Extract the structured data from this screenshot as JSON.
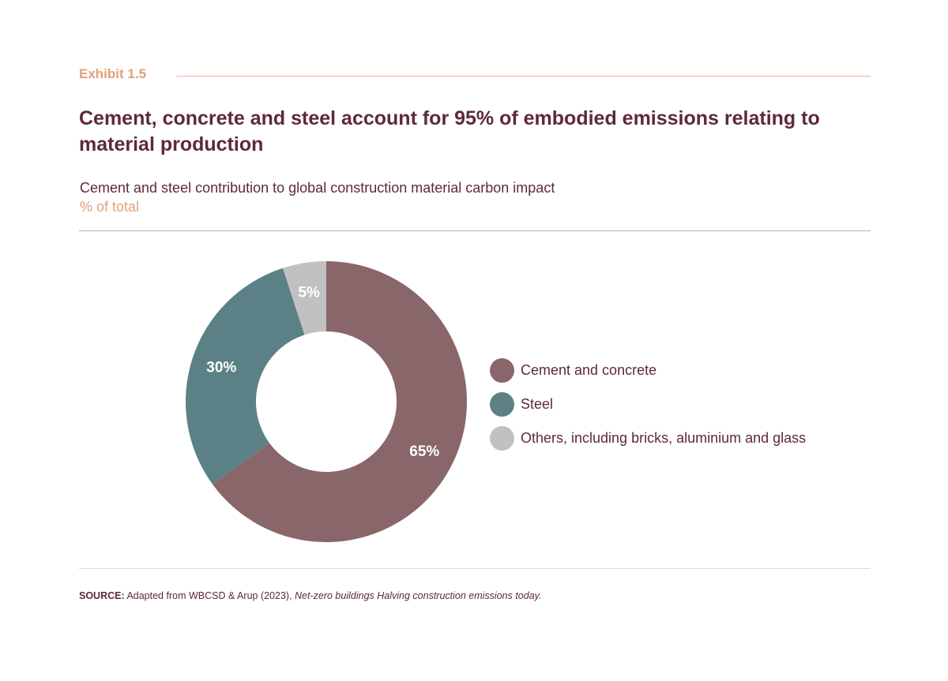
{
  "exhibit": {
    "label": "Exhibit 1.5"
  },
  "headline": "Cement, concrete and steel account for 95% of embodied emissions relating to material production",
  "subtitle": "Cement and steel contribution to global construction material carbon impact",
  "unit_label": "% of total",
  "colors": {
    "cement": "#896669",
    "steel": "#5b8186",
    "others": "#c2c0c0",
    "title": "#5e2a36",
    "accent": "#e0a178"
  },
  "chart_data": {
    "type": "pie",
    "variant": "donut",
    "title": "Cement and steel contribution to global construction material carbon impact",
    "unit": "% of total",
    "legend_position": "right",
    "slices": [
      {
        "name": "Cement and concrete",
        "value": 65,
        "label": "65%",
        "color": "#896669"
      },
      {
        "name": "Steel",
        "value": 30,
        "label": "30%",
        "color": "#5b8186"
      },
      {
        "name": "Others, including bricks, aluminium and glass",
        "value": 5,
        "label": "5%",
        "color": "#c2c0c0"
      }
    ]
  },
  "source": {
    "key": "SOURCE:",
    "text": " Adapted from WBCSD & Arup (2023), ",
    "title": "Net-zero buildings Halving construction emissions today."
  }
}
